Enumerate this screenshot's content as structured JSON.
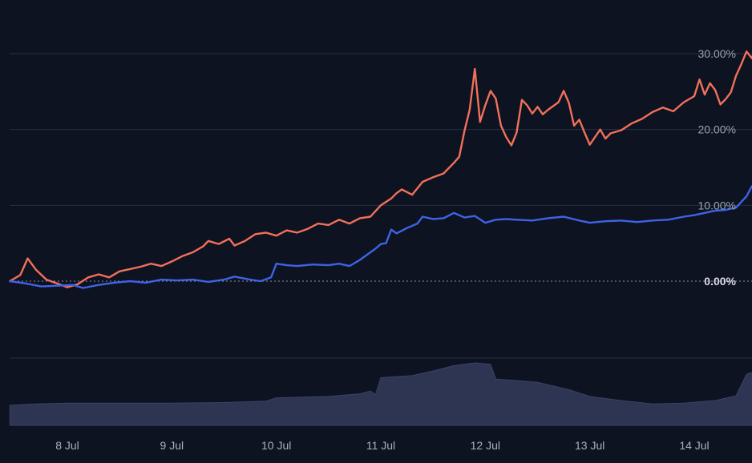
{
  "chart_data": {
    "type": "line",
    "title": "",
    "xlabel": "",
    "ylabel": "",
    "x_tick_labels": [
      "8 Jul",
      "9 Jul",
      "10 Jul",
      "11 Jul",
      "12 Jul",
      "13 Jul",
      "14 Jul"
    ],
    "y_tick_labels": [
      "0.00%",
      "10.00%",
      "20.00%",
      "30.00%"
    ],
    "y_ticks": [
      0,
      10,
      20,
      30
    ],
    "ylim": [
      -10,
      32
    ],
    "xlim": [
      7.45,
      14.45
    ],
    "grid": true,
    "series": [
      {
        "color": "#f2705a",
        "points": [
          [
            7.45,
            0
          ],
          [
            7.55,
            0.8
          ],
          [
            7.62,
            3.0
          ],
          [
            7.7,
            1.5
          ],
          [
            7.8,
            0.2
          ],
          [
            7.9,
            -0.3
          ],
          [
            8.0,
            -0.8
          ],
          [
            8.1,
            -0.4
          ],
          [
            8.2,
            0.5
          ],
          [
            8.3,
            0.9
          ],
          [
            8.4,
            0.5
          ],
          [
            8.5,
            1.3
          ],
          [
            8.6,
            1.6
          ],
          [
            8.7,
            1.9
          ],
          [
            8.8,
            2.3
          ],
          [
            8.9,
            2.0
          ],
          [
            9.0,
            2.6
          ],
          [
            9.1,
            3.3
          ],
          [
            9.2,
            3.8
          ],
          [
            9.3,
            4.6
          ],
          [
            9.35,
            5.3
          ],
          [
            9.45,
            4.9
          ],
          [
            9.55,
            5.6
          ],
          [
            9.6,
            4.7
          ],
          [
            9.7,
            5.3
          ],
          [
            9.8,
            6.2
          ],
          [
            9.9,
            6.4
          ],
          [
            10.0,
            6.0
          ],
          [
            10.1,
            6.7
          ],
          [
            10.2,
            6.4
          ],
          [
            10.3,
            6.9
          ],
          [
            10.4,
            7.6
          ],
          [
            10.5,
            7.4
          ],
          [
            10.6,
            8.1
          ],
          [
            10.7,
            7.6
          ],
          [
            10.8,
            8.3
          ],
          [
            10.9,
            8.5
          ],
          [
            11.0,
            10.0
          ],
          [
            11.1,
            10.9
          ],
          [
            11.15,
            11.6
          ],
          [
            11.2,
            12.1
          ],
          [
            11.3,
            11.4
          ],
          [
            11.4,
            13.1
          ],
          [
            11.5,
            13.7
          ],
          [
            11.6,
            14.2
          ],
          [
            11.7,
            15.6
          ],
          [
            11.75,
            16.4
          ],
          [
            11.8,
            19.8
          ],
          [
            11.85,
            22.6
          ],
          [
            11.9,
            28.0
          ],
          [
            11.95,
            21.0
          ],
          [
            12.0,
            23.2
          ],
          [
            12.05,
            25.1
          ],
          [
            12.1,
            24.1
          ],
          [
            12.15,
            20.5
          ],
          [
            12.2,
            19.0
          ],
          [
            12.25,
            17.9
          ],
          [
            12.3,
            19.6
          ],
          [
            12.35,
            23.9
          ],
          [
            12.4,
            23.2
          ],
          [
            12.45,
            22.1
          ],
          [
            12.5,
            23.0
          ],
          [
            12.55,
            22.0
          ],
          [
            12.6,
            22.6
          ],
          [
            12.7,
            23.6
          ],
          [
            12.75,
            25.1
          ],
          [
            12.8,
            23.5
          ],
          [
            12.85,
            20.5
          ],
          [
            12.9,
            21.3
          ],
          [
            12.95,
            19.6
          ],
          [
            13.0,
            18.0
          ],
          [
            13.05,
            19.0
          ],
          [
            13.1,
            20.0
          ],
          [
            13.15,
            18.8
          ],
          [
            13.2,
            19.5
          ],
          [
            13.3,
            19.9
          ],
          [
            13.4,
            20.8
          ],
          [
            13.5,
            21.4
          ],
          [
            13.6,
            22.3
          ],
          [
            13.7,
            22.9
          ],
          [
            13.8,
            22.4
          ],
          [
            13.9,
            23.6
          ],
          [
            14.0,
            24.4
          ],
          [
            14.05,
            26.6
          ],
          [
            14.1,
            24.6
          ],
          [
            14.15,
            26.1
          ],
          [
            14.2,
            25.2
          ],
          [
            14.25,
            23.3
          ],
          [
            14.3,
            24.0
          ],
          [
            14.35,
            24.9
          ],
          [
            14.4,
            27.1
          ],
          [
            14.45,
            28.6
          ],
          [
            14.5,
            30.3
          ],
          [
            14.55,
            29.4
          ],
          [
            14.6,
            31.2
          ],
          [
            14.63,
            31.4
          ]
        ]
      },
      {
        "color": "#3e63e6",
        "points": [
          [
            7.45,
            0
          ],
          [
            7.6,
            -0.3
          ],
          [
            7.75,
            -0.7
          ],
          [
            7.9,
            -0.6
          ],
          [
            8.05,
            -0.5
          ],
          [
            8.15,
            -0.9
          ],
          [
            8.3,
            -0.5
          ],
          [
            8.45,
            -0.2
          ],
          [
            8.6,
            0.0
          ],
          [
            8.75,
            -0.2
          ],
          [
            8.9,
            0.2
          ],
          [
            9.05,
            0.1
          ],
          [
            9.2,
            0.2
          ],
          [
            9.35,
            -0.1
          ],
          [
            9.5,
            0.2
          ],
          [
            9.6,
            0.6
          ],
          [
            9.75,
            0.2
          ],
          [
            9.85,
            0.0
          ],
          [
            9.95,
            0.5
          ],
          [
            10.0,
            2.3
          ],
          [
            10.1,
            2.1
          ],
          [
            10.2,
            2.0
          ],
          [
            10.35,
            2.2
          ],
          [
            10.5,
            2.1
          ],
          [
            10.6,
            2.3
          ],
          [
            10.7,
            2.0
          ],
          [
            10.8,
            2.8
          ],
          [
            10.9,
            3.8
          ],
          [
            10.95,
            4.3
          ],
          [
            11.0,
            4.9
          ],
          [
            11.05,
            5.0
          ],
          [
            11.1,
            6.8
          ],
          [
            11.15,
            6.3
          ],
          [
            11.25,
            7.0
          ],
          [
            11.35,
            7.6
          ],
          [
            11.4,
            8.5
          ],
          [
            11.5,
            8.2
          ],
          [
            11.6,
            8.3
          ],
          [
            11.7,
            9.0
          ],
          [
            11.8,
            8.4
          ],
          [
            11.9,
            8.6
          ],
          [
            12.0,
            7.7
          ],
          [
            12.1,
            8.1
          ],
          [
            12.2,
            8.2
          ],
          [
            12.3,
            8.1
          ],
          [
            12.45,
            8.0
          ],
          [
            12.6,
            8.3
          ],
          [
            12.75,
            8.5
          ],
          [
            12.9,
            8.0
          ],
          [
            13.0,
            7.7
          ],
          [
            13.15,
            7.9
          ],
          [
            13.3,
            8.0
          ],
          [
            13.45,
            7.8
          ],
          [
            13.6,
            8.0
          ],
          [
            13.75,
            8.1
          ],
          [
            13.9,
            8.5
          ],
          [
            14.0,
            8.7
          ],
          [
            14.1,
            9.0
          ],
          [
            14.2,
            9.3
          ],
          [
            14.3,
            9.4
          ],
          [
            14.4,
            9.7
          ],
          [
            14.5,
            11.2
          ],
          [
            14.55,
            12.5
          ],
          [
            14.6,
            12.9
          ],
          [
            14.63,
            12.6
          ]
        ]
      },
      {
        "type": "area",
        "color": "#2e3552",
        "points": [
          [
            7.45,
            3.0
          ],
          [
            7.7,
            3.2
          ],
          [
            8.0,
            3.3
          ],
          [
            8.5,
            3.3
          ],
          [
            9.0,
            3.3
          ],
          [
            9.5,
            3.4
          ],
          [
            9.9,
            3.6
          ],
          [
            10.0,
            4.1
          ],
          [
            10.5,
            4.3
          ],
          [
            10.8,
            4.7
          ],
          [
            10.9,
            5.1
          ],
          [
            10.95,
            4.6
          ],
          [
            11.0,
            7.1
          ],
          [
            11.3,
            7.4
          ],
          [
            11.5,
            8.1
          ],
          [
            11.7,
            8.9
          ],
          [
            11.9,
            9.3
          ],
          [
            12.05,
            9.1
          ],
          [
            12.1,
            6.9
          ],
          [
            12.5,
            6.4
          ],
          [
            12.8,
            5.3
          ],
          [
            13.0,
            4.3
          ],
          [
            13.3,
            3.7
          ],
          [
            13.6,
            3.2
          ],
          [
            13.9,
            3.3
          ],
          [
            14.2,
            3.7
          ],
          [
            14.4,
            4.4
          ],
          [
            14.5,
            7.6
          ],
          [
            14.63,
            8.3
          ]
        ]
      }
    ]
  }
}
